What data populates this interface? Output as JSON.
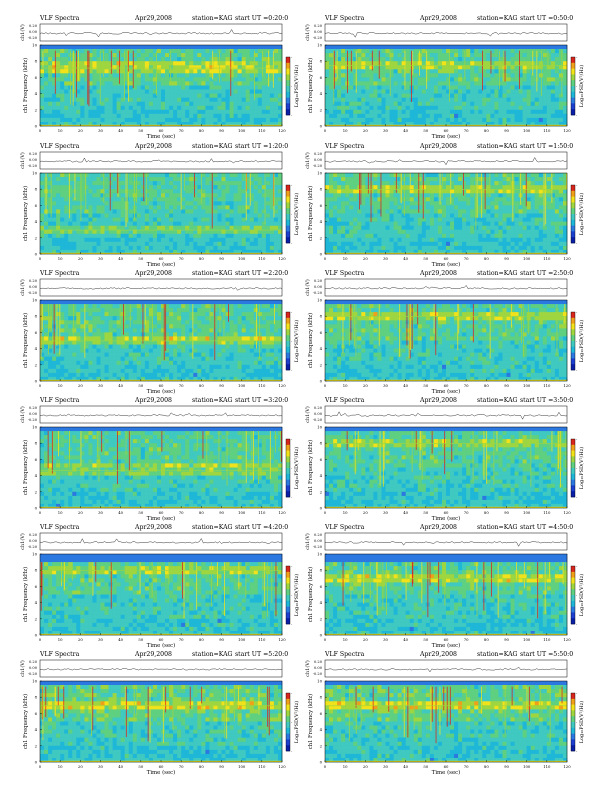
{
  "page": {
    "header_label": "VLF Spectra",
    "date": "Apr29,2008",
    "station": "station=KAG",
    "start_prefix": "start  UT =",
    "ch_axis_label": "ch1(V)",
    "freq_axis_label": "ch1 Frequency (kHz)",
    "time_axis_label": "Time (sec)",
    "colorbar_label": "Log₁₀PSD(V²/Hz)",
    "ch_ticks": [
      "0.20",
      "0.00",
      "-0.20"
    ],
    "freq_ticks": [
      "0",
      "2",
      "4",
      "6",
      "8",
      "10"
    ],
    "time_ticks": [
      "0",
      "10",
      "20",
      "30",
      "40",
      "50",
      "60",
      "70",
      "80",
      "90",
      "100",
      "110",
      "120"
    ],
    "colorbar_ticks": [
      "-",
      "-",
      "-"
    ],
    "colors": {
      "low": "#0a1fa8",
      "mid": "#1fb7d8",
      "high_green": "#9fd640",
      "yellow": "#f2e21a",
      "red": "#d9261c"
    }
  },
  "chart_data": [
    {
      "type": "heatmap",
      "title": "VLF Spectra  Apr29,2008  station=KAG  start UT =0:20:0",
      "start_ut": "0:20:0",
      "xlabel": "Time (sec)",
      "ylabel": "ch1 Frequency (kHz)",
      "xlim": [
        0,
        120
      ],
      "ylim": [
        0,
        10
      ],
      "band_top_khz": 9.3,
      "intensity": 0.62,
      "wave_freq_khz": 7.2
    },
    {
      "type": "heatmap",
      "title": "VLF Spectra  Apr29,2008  station=KAG  start UT =0:50:0",
      "start_ut": "0:50:0",
      "xlabel": "Time (sec)",
      "ylabel": "ch1 Frequency (kHz)",
      "xlim": [
        0,
        120
      ],
      "ylim": [
        0,
        10
      ],
      "band_top_khz": 9.3,
      "intensity": 0.55,
      "wave_freq_khz": 7.5
    },
    {
      "type": "heatmap",
      "title": "VLF Spectra  Apr29,2008  station=KAG  start UT =1:20:0",
      "start_ut": "1:20:0",
      "xlabel": "Time (sec)",
      "ylabel": "ch1 Frequency (kHz)",
      "xlim": [
        0,
        120
      ],
      "ylim": [
        0,
        10
      ],
      "band_top_khz": 10,
      "intensity": 0.45,
      "wave_freq_khz": 3.0
    },
    {
      "type": "heatmap",
      "title": "VLF Spectra  Apr29,2008  station=KAG  start UT =1:50:0",
      "start_ut": "1:50:0",
      "xlabel": "Time (sec)",
      "ylabel": "ch1 Frequency (kHz)",
      "xlim": [
        0,
        120
      ],
      "ylim": [
        0,
        10
      ],
      "band_top_khz": 10,
      "intensity": 0.5,
      "wave_freq_khz": 8.0
    },
    {
      "type": "heatmap",
      "title": "VLF Spectra  Apr29,2008  station=KAG  start UT =2:20:0",
      "start_ut": "2:20:0",
      "xlabel": "Time (sec)",
      "ylabel": "ch1 Frequency (kHz)",
      "xlim": [
        0,
        120
      ],
      "ylim": [
        0,
        10
      ],
      "band_top_khz": 9.5,
      "intensity": 0.6,
      "wave_freq_khz": 5.0
    },
    {
      "type": "heatmap",
      "title": "VLF Spectra  Apr29,2008  station=KAG  start UT =2:50:0",
      "start_ut": "2:50:0",
      "xlabel": "Time (sec)",
      "ylabel": "ch1 Frequency (kHz)",
      "xlim": [
        0,
        120
      ],
      "ylim": [
        0,
        10
      ],
      "band_top_khz": 9.5,
      "intensity": 0.58,
      "wave_freq_khz": 8.0
    },
    {
      "type": "heatmap",
      "title": "VLF Spectra  Apr29,2008  station=KAG  start UT =3:20:0",
      "start_ut": "3:20:0",
      "xlabel": "Time (sec)",
      "ylabel": "ch1 Frequency (kHz)",
      "xlim": [
        0,
        120
      ],
      "ylim": [
        0,
        10
      ],
      "band_top_khz": 9.5,
      "intensity": 0.5,
      "wave_freq_khz": 4.7
    },
    {
      "type": "heatmap",
      "title": "VLF Spectra  Apr29,2008  station=KAG  start UT =3:50:0",
      "start_ut": "3:50:0",
      "xlabel": "Time (sec)",
      "ylabel": "ch1 Frequency (kHz)",
      "xlim": [
        0,
        120
      ],
      "ylim": [
        0,
        10
      ],
      "band_top_khz": 9.5,
      "intensity": 0.42,
      "wave_freq_khz": 8.0
    },
    {
      "type": "heatmap",
      "title": "VLF Spectra  Apr29,2008  station=KAG  start UT =4:20:0",
      "start_ut": "4:20:0",
      "xlabel": "Time (sec)",
      "ylabel": "ch1 Frequency (kHz)",
      "xlim": [
        0,
        120
      ],
      "ylim": [
        0,
        10
      ],
      "band_top_khz": 9.0,
      "intensity": 0.5,
      "wave_freq_khz": 8.0
    },
    {
      "type": "heatmap",
      "title": "VLF Spectra  Apr29,2008  station=KAG  start UT =4:50:0",
      "start_ut": "4:50:0",
      "xlabel": "Time (sec)",
      "ylabel": "ch1 Frequency (kHz)",
      "xlim": [
        0,
        120
      ],
      "ylim": [
        0,
        10
      ],
      "band_top_khz": 9.0,
      "intensity": 0.6,
      "wave_freq_khz": 7.0
    },
    {
      "type": "heatmap",
      "title": "VLF Spectra  Apr29,2008  station=KAG  start UT =5:20:0",
      "start_ut": "5:20:0",
      "xlabel": "Time (sec)",
      "ylabel": "ch1 Frequency (kHz)",
      "xlim": [
        0,
        120
      ],
      "ylim": [
        0,
        10
      ],
      "band_top_khz": 9.3,
      "intensity": 0.7,
      "wave_freq_khz": 7.0
    },
    {
      "type": "heatmap",
      "title": "VLF Spectra  Apr29,2008  station=KAG  start UT =5:50:0",
      "start_ut": "5:50:0",
      "xlabel": "Time (sec)",
      "ylabel": "ch1 Frequency (kHz)",
      "xlim": [
        0,
        120
      ],
      "ylim": [
        0,
        10
      ],
      "band_top_khz": 9.3,
      "intensity": 0.72,
      "wave_freq_khz": 7.0
    }
  ]
}
